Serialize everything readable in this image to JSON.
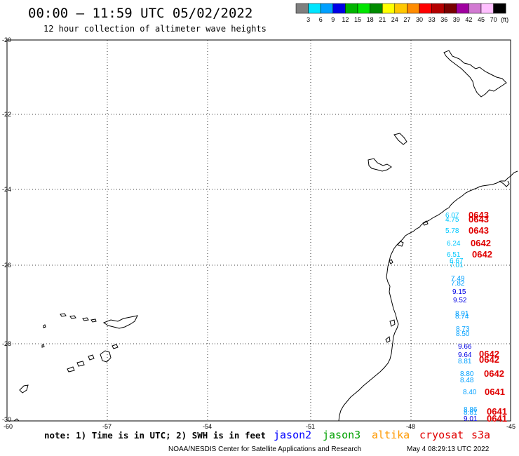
{
  "header": {
    "title": "00:00 – 11:59 UTC 05/02/2022",
    "subtitle": "12 hour collection of altimeter wave heights"
  },
  "colorbar": {
    "bins": [
      {
        "color": "#7f7f7f"
      },
      {
        "color": "#00e5ff"
      },
      {
        "color": "#00a0ff"
      },
      {
        "color": "#0000e6"
      },
      {
        "color": "#00b400"
      },
      {
        "color": "#00e600"
      },
      {
        "color": "#008c00"
      },
      {
        "color": "#ffff00"
      },
      {
        "color": "#ffc800"
      },
      {
        "color": "#ff8c00"
      },
      {
        "color": "#ff0000"
      },
      {
        "color": "#b40000"
      },
      {
        "color": "#780000"
      },
      {
        "color": "#a000a0"
      },
      {
        "color": "#d27ad2"
      },
      {
        "color": "#ffc0ff"
      },
      {
        "color": "#000000"
      }
    ],
    "labels": [
      "3",
      "6",
      "9",
      "12",
      "15",
      "18",
      "21",
      "24",
      "27",
      "30",
      "33",
      "36",
      "39",
      "42",
      "45",
      "70"
    ],
    "unit": "(ft)"
  },
  "axes": {
    "lat_labels": [
      "-20",
      "-22",
      "-24",
      "-26",
      "-28",
      "-30"
    ],
    "lon_labels": [
      "-60",
      "-57",
      "-54",
      "-51",
      "-48",
      "-45"
    ]
  },
  "observations": [
    {
      "text": "6.07",
      "color": "#00c8ff"
    },
    {
      "text": "4.75",
      "color": "#00c8ff"
    },
    {
      "text": "5.78",
      "color": "#00c8ff"
    },
    {
      "text": "6.24",
      "color": "#00c8ff"
    },
    {
      "text": "6.51",
      "color": "#00c8ff"
    },
    {
      "text": "6.67",
      "color": "#00c8ff"
    },
    {
      "text": "7.01",
      "color": "#00c8ff"
    },
    {
      "text": "7.49",
      "color": "#00a0ff"
    },
    {
      "text": "7.82",
      "color": "#00a0ff"
    },
    {
      "text": "9.15",
      "color": "#0000e6"
    },
    {
      "text": "9.52",
      "color": "#0000e6"
    },
    {
      "text": "8.91",
      "color": "#00a0ff"
    },
    {
      "text": "8.74",
      "color": "#00a0ff"
    },
    {
      "text": "8.73",
      "color": "#00a0ff"
    },
    {
      "text": "8.50",
      "color": "#00a0ff"
    },
    {
      "text": "9.66",
      "color": "#0000e6"
    },
    {
      "text": "9.64",
      "color": "#0000e6"
    },
    {
      "text": "8.81",
      "color": "#00a0ff"
    },
    {
      "text": "8.80",
      "color": "#00a0ff"
    },
    {
      "text": "8.48",
      "color": "#00a0ff"
    },
    {
      "text": "8.40",
      "color": "#00a0ff"
    },
    {
      "text": "8.86",
      "color": "#00a0ff"
    },
    {
      "text": "8.81",
      "color": "#00a0ff"
    },
    {
      "text": "9.01",
      "color": "#0000e6"
    }
  ],
  "pass_labels": [
    "0643",
    "0643",
    "0643",
    "0642",
    "0642",
    "0642",
    "0642",
    "0642",
    "0641",
    "0641",
    "0641"
  ],
  "note": "note: 1) Time is in UTC; 2) SWH is in feet",
  "satellites": [
    {
      "name": "jason2",
      "color": "#0000ff"
    },
    {
      "name": "jason3",
      "color": "#00a000"
    },
    {
      "name": "altika",
      "color": "#ff9900"
    },
    {
      "name": "cryosat",
      "color": "#e00000"
    },
    {
      "name": "s3a",
      "color": "#e00000"
    }
  ],
  "footer": {
    "agency": "NOAA/NESDIS Center for Satellite Applications and Research",
    "timestamp": "May  4 08:29:13 UTC 2022"
  }
}
